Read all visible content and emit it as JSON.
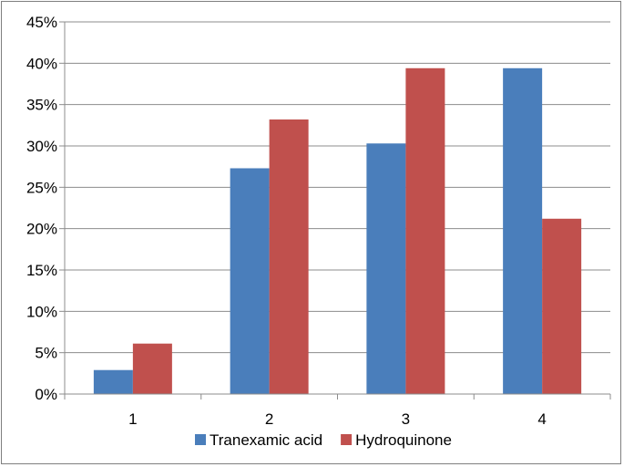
{
  "chart_data": {
    "type": "bar",
    "categories": [
      "1",
      "2",
      "3",
      "4"
    ],
    "series": [
      {
        "name": "Tranexamic acid",
        "color": "#4a7ebb",
        "values": [
          2.9,
          27.3,
          30.3,
          39.4
        ]
      },
      {
        "name": "Hydroquinone",
        "color": "#c0504d",
        "values": [
          6.1,
          33.2,
          39.4,
          21.2
        ]
      }
    ],
    "ylim": [
      0,
      45
    ],
    "yticks": [
      "0%",
      "5%",
      "10%",
      "15%",
      "20%",
      "25%",
      "30%",
      "35%",
      "40%",
      "45%"
    ],
    "grid": true,
    "legend": "bottom",
    "title": "",
    "xlabel": "",
    "ylabel": ""
  }
}
